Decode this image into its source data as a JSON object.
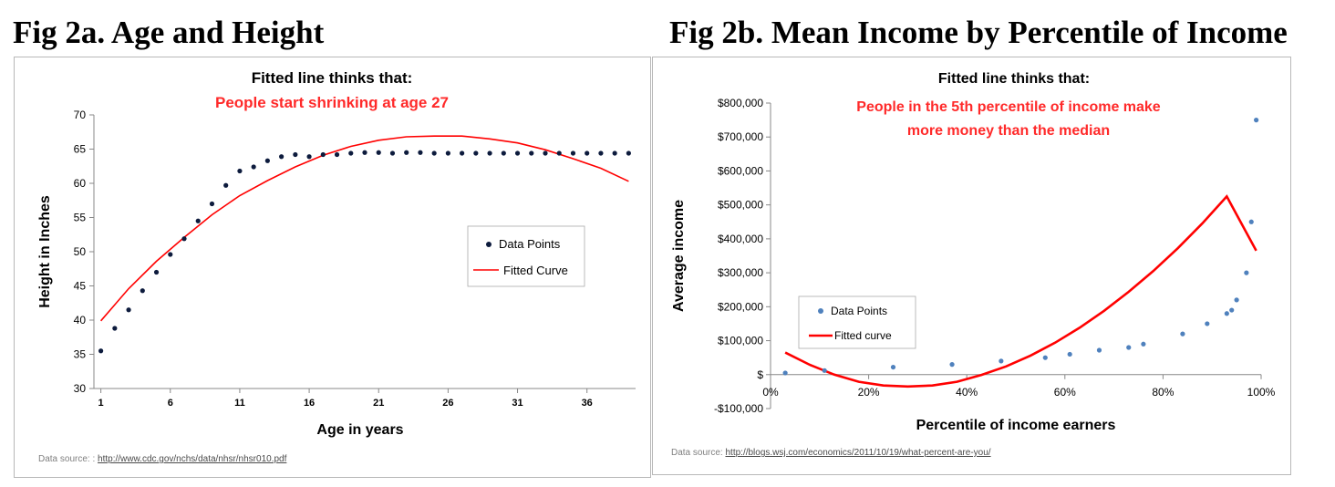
{
  "figures": {
    "a": {
      "title": "Fig 2a. Age and Height"
    },
    "b": {
      "title": "Fig 2b. Mean Income by Percentile of Income"
    }
  },
  "chart_data": [
    {
      "type": "scatter",
      "annotation_heading": "Fitted line thinks that:",
      "annotation_text": [
        "People start shrinking at age 27"
      ],
      "xlabel": "Age in years",
      "ylabel": "Height in Inches",
      "xlim": [
        1,
        39
      ],
      "ylim": [
        30,
        70
      ],
      "x_ticks": [
        1,
        6,
        11,
        16,
        21,
        26,
        31,
        36
      ],
      "y_ticks": [
        30,
        35,
        40,
        45,
        50,
        55,
        60,
        65,
        70
      ],
      "grid": false,
      "legend_position": "right",
      "series": [
        {
          "name": "Data Points",
          "kind": "scatter",
          "color": "#0d1b3d",
          "x": [
            1,
            2,
            3,
            4,
            5,
            6,
            7,
            8,
            9,
            10,
            11,
            12,
            13,
            14,
            15,
            16,
            17,
            18,
            19,
            20,
            21,
            22,
            23,
            24,
            25,
            26,
            27,
            28,
            29,
            30,
            31,
            32,
            33,
            34,
            35,
            36,
            37,
            38,
            39
          ],
          "y": [
            35.5,
            38.8,
            41.5,
            44.3,
            47,
            49.6,
            51.9,
            54.5,
            57,
            59.7,
            61.8,
            62.4,
            63.3,
            63.9,
            64.2,
            63.9,
            64.2,
            64.2,
            64.4,
            64.5,
            64.5,
            64.4,
            64.5,
            64.5,
            64.4,
            64.4,
            64.4,
            64.4,
            64.4,
            64.4,
            64.4,
            64.4,
            64.4,
            64.4,
            64.4,
            64.4,
            64.4,
            64.4,
            64.4
          ]
        },
        {
          "name": "Fitted Curve",
          "kind": "line",
          "color": "#ff0000",
          "x": [
            1,
            3,
            5,
            7,
            9,
            11,
            13,
            15,
            17,
            19,
            21,
            23,
            25,
            27,
            29,
            31,
            33,
            35,
            37,
            39
          ],
          "y": [
            39.9,
            44.6,
            48.6,
            52.1,
            55.4,
            58.2,
            60.4,
            62.4,
            64.1,
            65.4,
            66.3,
            66.8,
            66.9,
            66.9,
            66.5,
            65.9,
            64.9,
            63.6,
            62.2,
            60.3
          ]
        }
      ],
      "source_label": "Data source: : ",
      "source_url": "http://www.cdc.gov/nchs/data/nhsr/nhsr010.pdf"
    },
    {
      "type": "scatter",
      "annotation_heading": "Fitted line thinks that:",
      "annotation_text": [
        "People in the 5th percentile of income make",
        "more money than the median"
      ],
      "xlabel": "Percentile of income earners",
      "ylabel": "Average income",
      "xlim": [
        0,
        100
      ],
      "ylim": [
        -100000,
        800000
      ],
      "x_ticks": [
        0,
        20,
        40,
        60,
        80,
        100
      ],
      "x_tick_labels": [
        "0%",
        "20%",
        "40%",
        "60%",
        "80%",
        "100%"
      ],
      "y_ticks": [
        -100000,
        0,
        100000,
        200000,
        300000,
        400000,
        500000,
        600000,
        700000,
        800000
      ],
      "y_tick_labels": [
        "-$100,000",
        "$",
        "$100,000",
        "$200,000",
        "$300,000",
        "$400,000",
        "$500,000",
        "$600,000",
        "$700,000",
        "$800,000"
      ],
      "grid": false,
      "legend_position": "bottom-left",
      "series": [
        {
          "name": "Data Points",
          "kind": "scatter",
          "color": "#4f81bd",
          "x": [
            3,
            11,
            25,
            37,
            47,
            56,
            61,
            67,
            73,
            76,
            84,
            89,
            93,
            94,
            95,
            97,
            98,
            99
          ],
          "y": [
            5000,
            12000,
            22000,
            30000,
            40000,
            50000,
            60000,
            72000,
            80000,
            90000,
            120000,
            150000,
            180000,
            190000,
            220000,
            300000,
            450000,
            750000
          ]
        },
        {
          "name": "Fitted curve",
          "kind": "line",
          "color": "#ff0000",
          "x": [
            3,
            8,
            13,
            18,
            23,
            28,
            33,
            38,
            43,
            48,
            53,
            58,
            63,
            68,
            73,
            78,
            83,
            88,
            93,
            99
          ],
          "y": [
            65000,
            29000,
            0,
            -21000,
            -32000,
            -35000,
            -32000,
            -21000,
            -1000,
            24000,
            56000,
            94000,
            138000,
            188000,
            244000,
            305000,
            372000,
            445000,
            525000,
            365000
          ]
        }
      ],
      "source_label": "Data source: ",
      "source_url": "http://blogs.wsj.com/economics/2011/10/19/what-percent-are-you/"
    }
  ]
}
